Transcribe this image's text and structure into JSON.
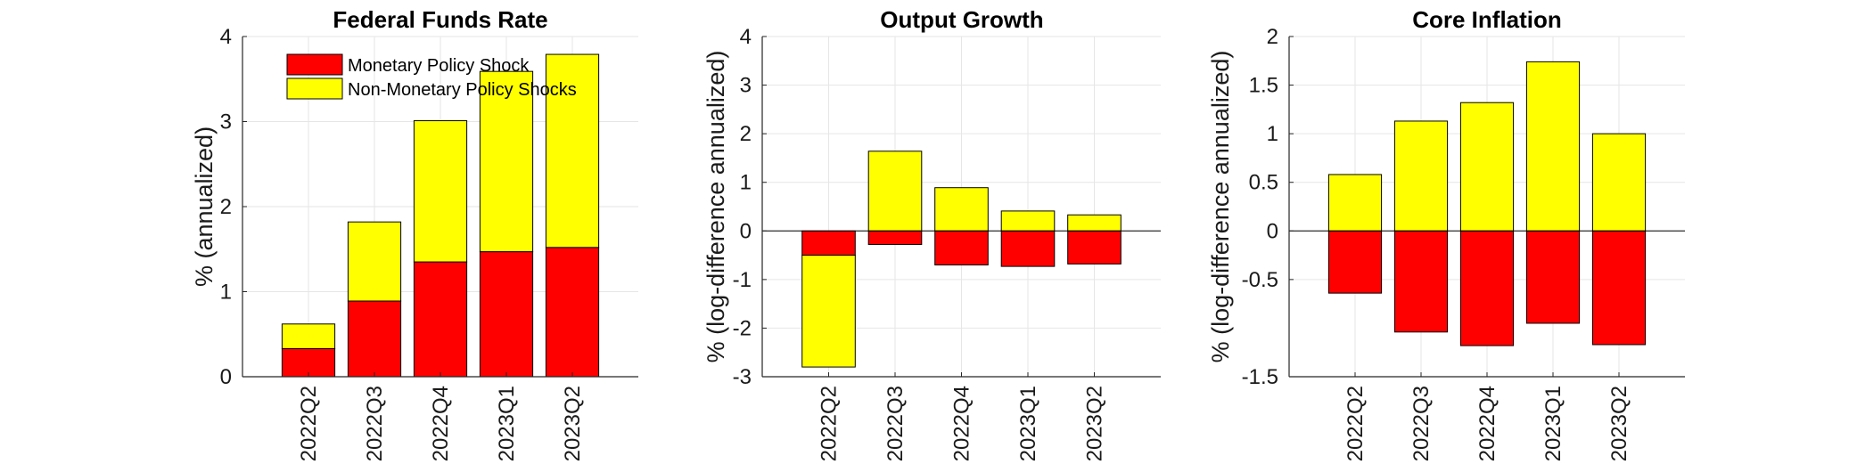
{
  "colors": {
    "monetary": "#ff0000",
    "non_monetary": "#ffff00",
    "grid": "#e6e6e6",
    "axis": "#262626"
  },
  "legend": {
    "items": [
      {
        "label": "Monetary Policy Shock",
        "color": "#ff0000"
      },
      {
        "label": "Non-Monetary Policy Shocks",
        "color": "#ffff00"
      }
    ]
  },
  "chart_data": [
    {
      "type": "bar",
      "stacked": true,
      "title": "Federal Funds Rate",
      "ylabel": "% (annualized)",
      "xlabel": "",
      "categories": [
        "2022Q2",
        "2022Q3",
        "2022Q4",
        "2023Q1",
        "2023Q2"
      ],
      "ylim": [
        0,
        4
      ],
      "yticks": [
        0,
        1,
        2,
        3,
        4
      ],
      "ytick_labels": [
        "0",
        "1",
        "2",
        "3",
        "4"
      ],
      "grid": true,
      "legend_position": "top-left",
      "series": [
        {
          "name": "Monetary Policy Shock",
          "values": [
            0.33,
            0.89,
            1.35,
            1.47,
            1.52
          ]
        },
        {
          "name": "Non-Monetary Policy Shocks",
          "values": [
            0.29,
            0.93,
            1.66,
            2.12,
            2.27
          ]
        }
      ]
    },
    {
      "type": "bar",
      "stacked": true,
      "title": "Output Growth",
      "ylabel": "% (log-difference annualized)",
      "xlabel": "",
      "categories": [
        "2022Q2",
        "2022Q3",
        "2022Q4",
        "2023Q1",
        "2023Q2"
      ],
      "ylim": [
        -3,
        4
      ],
      "yticks": [
        -3,
        -2,
        -1,
        0,
        1,
        2,
        3,
        4
      ],
      "ytick_labels": [
        "-3",
        "-2",
        "-1",
        "0",
        "1",
        "2",
        "3",
        "4"
      ],
      "grid": true,
      "series": [
        {
          "name": "Monetary Policy Shock",
          "values": [
            -0.5,
            -0.28,
            -0.7,
            -0.73,
            -0.68
          ]
        },
        {
          "name": "Non-Monetary Policy Shocks",
          "values": [
            -2.3,
            1.64,
            0.89,
            0.41,
            0.33
          ]
        }
      ]
    },
    {
      "type": "bar",
      "stacked": true,
      "title": "Core Inflation",
      "ylabel": "% (log-difference annualized)",
      "xlabel": "",
      "categories": [
        "2022Q2",
        "2022Q3",
        "2022Q4",
        "2023Q1",
        "2023Q2"
      ],
      "ylim": [
        -1.5,
        2
      ],
      "yticks": [
        -1.5,
        -0.5,
        0,
        0.5,
        1,
        1.5,
        2
      ],
      "ytick_labels": [
        "-1.5",
        "-0.5",
        "0",
        "0.5",
        "1",
        "1.5",
        "2"
      ],
      "grid": true,
      "series": [
        {
          "name": "Monetary Policy Shock",
          "values": [
            -0.64,
            -1.04,
            -1.18,
            -0.95,
            -1.17
          ]
        },
        {
          "name": "Non-Monetary Policy Shocks",
          "values": [
            0.58,
            1.13,
            1.32,
            1.74,
            1.0
          ]
        }
      ]
    }
  ]
}
